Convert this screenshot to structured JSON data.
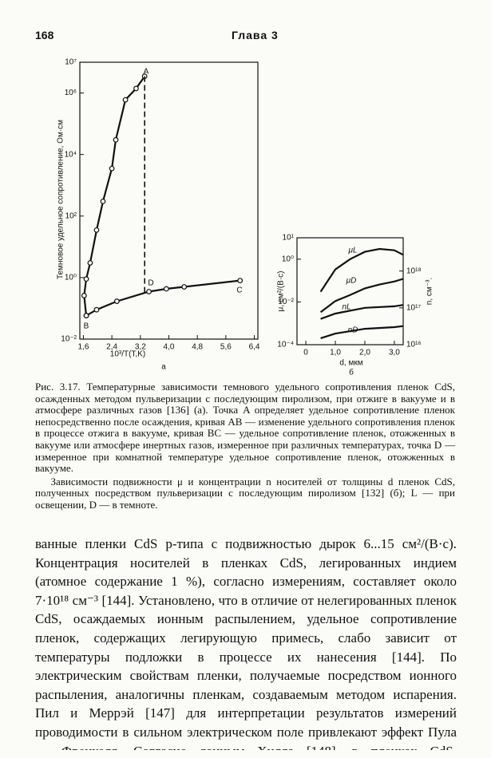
{
  "header": {
    "page_number": "168",
    "chapter": "Глава 3"
  },
  "chart_data": [
    {
      "type": "line",
      "sublabel": "а",
      "ylabel": "Темновое удельное сопротивление, Ом·см",
      "xlabel": "10³/T(T,K)",
      "ylog": true,
      "xlim": [
        1.5,
        6.5
      ],
      "ylim": [
        0.01,
        10000000
      ],
      "xticks": [
        {
          "value": 1.6,
          "label": "1,6"
        },
        {
          "value": 2.4,
          "label": "2,4"
        },
        {
          "value": 3.2,
          "label": "3,2"
        },
        {
          "value": 4.0,
          "label": "4,0"
        },
        {
          "value": 4.8,
          "label": "4,8"
        },
        {
          "value": 5.6,
          "label": "5,6"
        },
        {
          "value": 6.4,
          "label": "6,4"
        }
      ],
      "yticks": [
        {
          "value": 0.01,
          "label": "10⁻²"
        },
        {
          "value": 1,
          "label": "10⁰"
        },
        {
          "value": 100,
          "label": "10²"
        },
        {
          "value": 10000,
          "label": "10⁴"
        },
        {
          "value": 1000000,
          "label": "10⁶"
        },
        {
          "value": 10000000,
          "label": "10⁷"
        }
      ],
      "annotations": [
        "A",
        "B",
        "C",
        "D"
      ],
      "series": [
        {
          "color": "#111",
          "markers": true,
          "x": [
            1.68,
            1.62,
            1.68,
            1.79,
            1.97,
            2.15,
            2.4,
            2.51,
            2.78,
            3.08,
            3.32
          ],
          "values": [
            0.058,
            0.26,
            0.9,
            3,
            35,
            300,
            3500,
            30000,
            600000,
            1400000,
            3500000
          ]
        },
        {
          "color": "#111",
          "markers": true,
          "x": [
            1.68,
            1.97,
            2.54,
            3.44,
            3.93,
            4.43,
            6.0
          ],
          "values": [
            0.058,
            0.09,
            0.17,
            0.35,
            0.43,
            0.5,
            0.8
          ]
        },
        {
          "color": "#111",
          "dashed": true,
          "x": [
            3.32,
            3.32
          ],
          "values": [
            3500000,
            0.33
          ]
        }
      ]
    },
    {
      "type": "line",
      "sublabel": "б",
      "ylabel": "μ, см²/(В·с)",
      "y2label": "n, см⁻³.",
      "xlabel": "d, мкм",
      "ylog": true,
      "y2log": true,
      "xlim": [
        -0.3,
        3.3
      ],
      "ylim": [
        0.0001,
        10
      ],
      "y2lim": [
        10000000000000000,
        8000000000000000000
      ],
      "xticks": [
        0,
        {
          "value": 1,
          "label": "1,0"
        },
        {
          "value": 2,
          "label": "2,0"
        },
        {
          "value": 3,
          "label": "3,0"
        }
      ],
      "yticks": [
        {
          "value": 0.0001,
          "label": "10⁻⁴"
        },
        {
          "value": 0.01,
          "label": "10⁻²"
        },
        {
          "value": 1,
          "label": "10⁰"
        },
        {
          "value": 10,
          "label": "10¹"
        }
      ],
      "y2ticks": [
        {
          "value": 10000000000000000,
          "label": "10¹⁶"
        },
        {
          "value": 100000000000000000,
          "label": "10¹⁷"
        },
        {
          "value": 1000000000000000000,
          "label": "10¹⁸"
        }
      ],
      "series": [
        {
          "name": "μL",
          "color": "#111",
          "x": [
            0.5,
            1.0,
            1.5,
            2.0,
            2.5,
            3.0,
            3.3
          ],
          "values": [
            0.03,
            0.33,
            1.0,
            2.2,
            3,
            2.6,
            1.6
          ]
        },
        {
          "name": "μD",
          "color": "#111",
          "x": [
            0.5,
            1.0,
            1.5,
            2.0,
            2.5,
            3.0,
            3.3
          ],
          "values": [
            0.0033,
            0.011,
            0.021,
            0.043,
            0.065,
            0.09,
            0.12
          ]
        },
        {
          "name": "nL",
          "color": "#111",
          "axis": "y2",
          "x": [
            0.5,
            1.0,
            2.0,
            3.0,
            3.3
          ],
          "values": [
            50000000000000000,
            70000000000000000,
            100000000000000000,
            110000000000000000,
            120000000000000000
          ]
        },
        {
          "name": "nD",
          "color": "#111",
          "axis": "y2",
          "x": [
            0.5,
            1.0,
            2.0,
            3.0,
            3.3
          ],
          "values": [
            15000000000000000,
            20000000000000000,
            27000000000000000,
            30000000000000000,
            32000000000000000
          ]
        }
      ]
    }
  ],
  "caption": [
    "Рис. 3.17. Температурные зависимости темнового удельного сопротивления пленок CdS, осажденных методом пульверизации с последующим пиролизом, при отжиге в вакууме и в атмосфере различных газов [136] (а). Точка A определяет удельное сопротивление пленок непосредственно после осаждения, кривая AB — изменение удельного сопротивления пленок в процессе отжига в вакууме, кривая BC — удельное сопротивление пленок, отожженных в вакууме или атмосфере инертных газов, измеренное при различных температурах, точка D — измеренное при комнатной температуре удельное сопротивление пленок, отожженных в вакууме.",
    "Зависимости подвижности μ и концентрации n носителей от толщины d пленок CdS, полученных посредством пульверизации с последующим пиролизом [132] (б); L — при освещении, D — в темноте."
  ],
  "body": "ванные пленки CdS p-типа с подвижностью дырок 6...15 см²/(В·с). Концентрация носителей в пленках CdS, легированных индием (атомное содержание 1 %), согласно измерениям, составляет около 7·10¹⁸ см⁻³ [144]. Установлено, что в отличие от нелегированных пленок CdS, осаждаемых ионным распылением, удельное сопротивление пленок, содержащих легирующую примесь, слабо зависит от температуры подложки в процессе их нанесения [144]. По электрическим свойствам пленки, получаемые посредством ионного распыления, аналогичны пленкам, создаваемым методом испарения. Пил и Меррэй [147] для интерпретации результатов измерений проводимости в сильном электрическом поле привлекают эффект Пула — Френкеля. Согласно данным Хилла [148], в пленках CdS, осаждаемых"
}
